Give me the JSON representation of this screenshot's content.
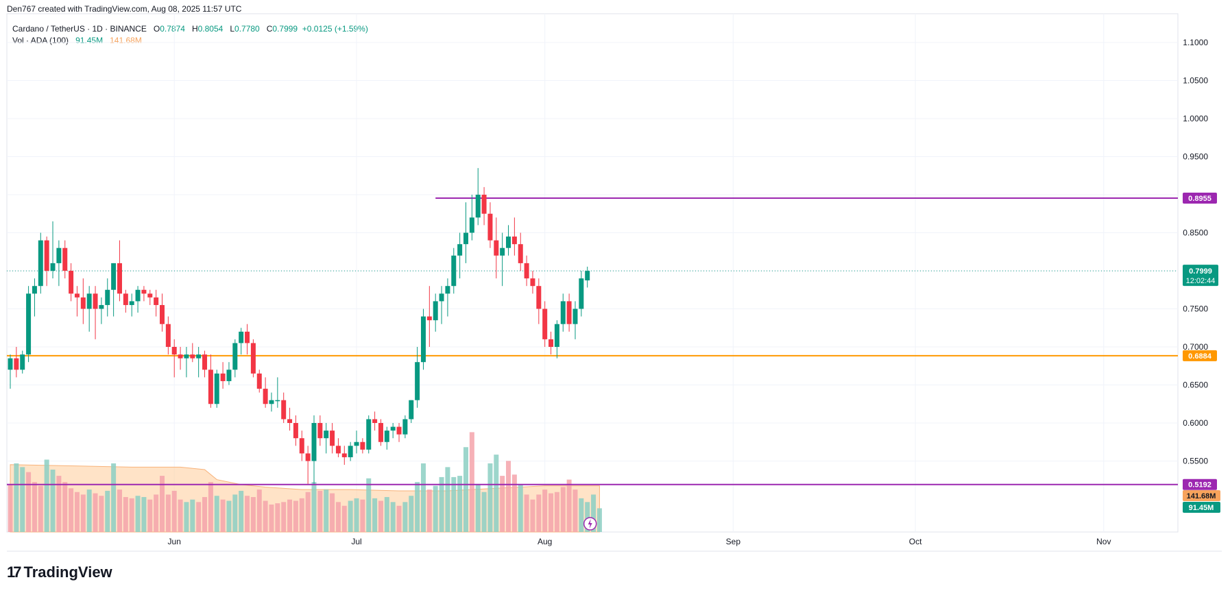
{
  "header": {
    "attribution": "Den767 created with TradingView.com, Aug 08, 2025 11:57 UTC"
  },
  "legend": {
    "symbol": "Cardano / TetherUS · 1D · BINANCE",
    "o_label": "O",
    "o_value": "0.7874",
    "h_label": "H",
    "h_value": "0.8054",
    "l_label": "L",
    "l_value": "0.7780",
    "c_label": "C",
    "c_value": "0.7999",
    "change": "+0.0125 (+1.59%)",
    "vol_label": "Vol · ADA (100)",
    "vol_value": "91.45M",
    "vol_ma_value": "141.68M"
  },
  "brand": {
    "name": "TradingView"
  },
  "colors": {
    "up": "#089981",
    "down": "#f23645",
    "vol_up": "#8ccfc3",
    "vol_down": "#f5a3aa",
    "vol_ma": "#f7a35c",
    "level_purple": "#9c27b0",
    "level_orange": "#ff9800",
    "grid": "#f0f3fa"
  },
  "chart_data": {
    "type": "candlestick",
    "title": "Cardano / TetherUS · 1D · BINANCE",
    "y_range": [
      0.48,
      1.13
    ],
    "y_ticks": [
      "1.1000",
      "1.0500",
      "1.0000",
      "0.9500",
      "0.8500",
      "0.7500",
      "0.7000",
      "0.6500",
      "0.6000",
      "0.5500"
    ],
    "y_tick_values": [
      1.1,
      1.05,
      1.0,
      0.95,
      0.85,
      0.75,
      0.7,
      0.65,
      0.6,
      0.55
    ],
    "x_labels": [
      "Jun",
      "Jul",
      "Aug",
      "Sep",
      "Oct",
      "Nov"
    ],
    "x_label_days": [
      27,
      57,
      88,
      119,
      149,
      180
    ],
    "levels": [
      {
        "name": "resistance",
        "value": 0.8955,
        "label": "0.8955",
        "color": "#9c27b0",
        "start_day": 70
      },
      {
        "name": "support",
        "value": 0.6884,
        "label": "0.6884",
        "color": "#ff9800",
        "start_day": 0
      },
      {
        "name": "low-level",
        "value": 0.5192,
        "label": "0.5192",
        "color": "#9c27b0",
        "start_day": 0
      }
    ],
    "last_price": {
      "label": "0.7999",
      "countdown": "12:02:44",
      "value": 0.7999
    },
    "vol_axis_labels": [
      {
        "label": "141.68M",
        "color": "#f7a35c"
      },
      {
        "label": "91.45M",
        "color": "#089981"
      }
    ],
    "candles": [
      [
        0.67,
        0.69,
        0.645,
        0.685
      ],
      [
        0.685,
        0.7,
        0.66,
        0.67
      ],
      [
        0.67,
        0.695,
        0.665,
        0.69
      ],
      [
        0.69,
        0.78,
        0.68,
        0.77
      ],
      [
        0.77,
        0.79,
        0.74,
        0.78
      ],
      [
        0.78,
        0.85,
        0.77,
        0.84
      ],
      [
        0.84,
        0.845,
        0.78,
        0.8
      ],
      [
        0.8,
        0.865,
        0.79,
        0.81
      ],
      [
        0.81,
        0.84,
        0.78,
        0.83
      ],
      [
        0.83,
        0.84,
        0.79,
        0.8
      ],
      [
        0.8,
        0.81,
        0.76,
        0.77
      ],
      [
        0.77,
        0.78,
        0.74,
        0.765
      ],
      [
        0.765,
        0.79,
        0.73,
        0.75
      ],
      [
        0.75,
        0.78,
        0.72,
        0.77
      ],
      [
        0.77,
        0.78,
        0.71,
        0.75
      ],
      [
        0.75,
        0.765,
        0.73,
        0.755
      ],
      [
        0.755,
        0.79,
        0.74,
        0.775
      ],
      [
        0.775,
        0.81,
        0.74,
        0.81
      ],
      [
        0.81,
        0.84,
        0.76,
        0.77
      ],
      [
        0.77,
        0.775,
        0.745,
        0.755
      ],
      [
        0.755,
        0.77,
        0.74,
        0.76
      ],
      [
        0.76,
        0.78,
        0.745,
        0.775
      ],
      [
        0.775,
        0.78,
        0.76,
        0.77
      ],
      [
        0.77,
        0.775,
        0.755,
        0.765
      ],
      [
        0.765,
        0.775,
        0.74,
        0.755
      ],
      [
        0.755,
        0.77,
        0.72,
        0.73
      ],
      [
        0.73,
        0.74,
        0.69,
        0.7
      ],
      [
        0.7,
        0.71,
        0.66,
        0.69
      ],
      [
        0.69,
        0.7,
        0.67,
        0.685
      ],
      [
        0.685,
        0.7,
        0.66,
        0.69
      ],
      [
        0.69,
        0.705,
        0.68,
        0.685
      ],
      [
        0.685,
        0.7,
        0.66,
        0.69
      ],
      [
        0.69,
        0.695,
        0.66,
        0.67
      ],
      [
        0.67,
        0.69,
        0.62,
        0.625
      ],
      [
        0.625,
        0.67,
        0.62,
        0.665
      ],
      [
        0.665,
        0.68,
        0.645,
        0.655
      ],
      [
        0.655,
        0.68,
        0.65,
        0.67
      ],
      [
        0.67,
        0.71,
        0.66,
        0.705
      ],
      [
        0.705,
        0.725,
        0.69,
        0.72
      ],
      [
        0.72,
        0.73,
        0.69,
        0.705
      ],
      [
        0.705,
        0.71,
        0.66,
        0.665
      ],
      [
        0.665,
        0.67,
        0.64,
        0.645
      ],
      [
        0.645,
        0.66,
        0.62,
        0.625
      ],
      [
        0.625,
        0.64,
        0.615,
        0.63
      ],
      [
        0.63,
        0.66,
        0.62,
        0.63
      ],
      [
        0.63,
        0.64,
        0.6,
        0.605
      ],
      [
        0.605,
        0.62,
        0.59,
        0.6
      ],
      [
        0.6,
        0.61,
        0.57,
        0.58
      ],
      [
        0.58,
        0.59,
        0.55,
        0.56
      ],
      [
        0.56,
        0.57,
        0.52,
        0.55
      ],
      [
        0.55,
        0.61,
        0.52,
        0.6
      ],
      [
        0.6,
        0.61,
        0.57,
        0.58
      ],
      [
        0.58,
        0.6,
        0.56,
        0.59
      ],
      [
        0.59,
        0.6,
        0.56,
        0.57
      ],
      [
        0.57,
        0.58,
        0.555,
        0.56
      ],
      [
        0.56,
        0.57,
        0.545,
        0.555
      ],
      [
        0.555,
        0.575,
        0.55,
        0.57
      ],
      [
        0.57,
        0.59,
        0.56,
        0.575
      ],
      [
        0.575,
        0.58,
        0.56,
        0.565
      ],
      [
        0.565,
        0.61,
        0.56,
        0.605
      ],
      [
        0.605,
        0.615,
        0.59,
        0.6
      ],
      [
        0.6,
        0.605,
        0.57,
        0.575
      ],
      [
        0.575,
        0.595,
        0.565,
        0.59
      ],
      [
        0.59,
        0.6,
        0.58,
        0.595
      ],
      [
        0.595,
        0.6,
        0.575,
        0.585
      ],
      [
        0.585,
        0.61,
        0.58,
        0.605
      ],
      [
        0.605,
        0.63,
        0.6,
        0.63
      ],
      [
        0.63,
        0.7,
        0.62,
        0.68
      ],
      [
        0.68,
        0.75,
        0.67,
        0.74
      ],
      [
        0.74,
        0.78,
        0.7,
        0.735
      ],
      [
        0.735,
        0.77,
        0.72,
        0.76
      ],
      [
        0.76,
        0.78,
        0.73,
        0.77
      ],
      [
        0.77,
        0.79,
        0.74,
        0.78
      ],
      [
        0.78,
        0.83,
        0.77,
        0.82
      ],
      [
        0.82,
        0.85,
        0.79,
        0.835
      ],
      [
        0.835,
        0.89,
        0.81,
        0.85
      ],
      [
        0.85,
        0.9,
        0.84,
        0.87
      ],
      [
        0.87,
        0.935,
        0.86,
        0.9
      ],
      [
        0.9,
        0.91,
        0.86,
        0.875
      ],
      [
        0.875,
        0.89,
        0.83,
        0.84
      ],
      [
        0.84,
        0.87,
        0.79,
        0.82
      ],
      [
        0.82,
        0.85,
        0.78,
        0.83
      ],
      [
        0.83,
        0.86,
        0.82,
        0.845
      ],
      [
        0.845,
        0.87,
        0.82,
        0.835
      ],
      [
        0.835,
        0.85,
        0.8,
        0.81
      ],
      [
        0.81,
        0.82,
        0.78,
        0.79
      ],
      [
        0.79,
        0.8,
        0.77,
        0.78
      ],
      [
        0.78,
        0.79,
        0.73,
        0.75
      ],
      [
        0.75,
        0.76,
        0.7,
        0.71
      ],
      [
        0.71,
        0.72,
        0.69,
        0.7
      ],
      [
        0.7,
        0.735,
        0.685,
        0.73
      ],
      [
        0.73,
        0.77,
        0.72,
        0.76
      ],
      [
        0.76,
        0.77,
        0.72,
        0.73
      ],
      [
        0.73,
        0.76,
        0.71,
        0.75
      ],
      [
        0.75,
        0.8,
        0.74,
        0.79
      ],
      [
        0.7874,
        0.8054,
        0.778,
        0.7999
      ]
    ],
    "volume": [
      [
        38,
        "d"
      ],
      [
        55,
        "u"
      ],
      [
        52,
        "u"
      ],
      [
        48,
        "d"
      ],
      [
        40,
        "d"
      ],
      [
        37,
        "d"
      ],
      [
        58,
        "u"
      ],
      [
        50,
        "u"
      ],
      [
        45,
        "d"
      ],
      [
        40,
        "d"
      ],
      [
        35,
        "d"
      ],
      [
        32,
        "d"
      ],
      [
        30,
        "d"
      ],
      [
        34,
        "u"
      ],
      [
        31,
        "d"
      ],
      [
        29,
        "d"
      ],
      [
        33,
        "u"
      ],
      [
        55,
        "u"
      ],
      [
        34,
        "d"
      ],
      [
        28,
        "d"
      ],
      [
        27,
        "d"
      ],
      [
        29,
        "u"
      ],
      [
        28,
        "u"
      ],
      [
        26,
        "d"
      ],
      [
        30,
        "d"
      ],
      [
        45,
        "d"
      ],
      [
        30,
        "d"
      ],
      [
        33,
        "d"
      ],
      [
        26,
        "d"
      ],
      [
        24,
        "u"
      ],
      [
        26,
        "u"
      ],
      [
        24,
        "d"
      ],
      [
        28,
        "d"
      ],
      [
        40,
        "d"
      ],
      [
        29,
        "u"
      ],
      [
        26,
        "d"
      ],
      [
        25,
        "u"
      ],
      [
        30,
        "u"
      ],
      [
        33,
        "u"
      ],
      [
        29,
        "d"
      ],
      [
        28,
        "d"
      ],
      [
        34,
        "d"
      ],
      [
        25,
        "d"
      ],
      [
        22,
        "d"
      ],
      [
        23,
        "d"
      ],
      [
        24,
        "d"
      ],
      [
        26,
        "d"
      ],
      [
        25,
        "d"
      ],
      [
        27,
        "d"
      ],
      [
        32,
        "d"
      ],
      [
        40,
        "u"
      ],
      [
        33,
        "d"
      ],
      [
        34,
        "u"
      ],
      [
        31,
        "d"
      ],
      [
        24,
        "d"
      ],
      [
        21,
        "d"
      ],
      [
        25,
        "u"
      ],
      [
        27,
        "u"
      ],
      [
        26,
        "d"
      ],
      [
        43,
        "u"
      ],
      [
        27,
        "u"
      ],
      [
        25,
        "d"
      ],
      [
        28,
        "u"
      ],
      [
        24,
        "u"
      ],
      [
        21,
        "d"
      ],
      [
        24,
        "u"
      ],
      [
        29,
        "u"
      ],
      [
        40,
        "u"
      ],
      [
        55,
        "u"
      ],
      [
        34,
        "d"
      ],
      [
        37,
        "u"
      ],
      [
        44,
        "u"
      ],
      [
        52,
        "u"
      ],
      [
        44,
        "u"
      ],
      [
        45,
        "u"
      ],
      [
        68,
        "u"
      ],
      [
        80,
        "d"
      ],
      [
        38,
        "u"
      ],
      [
        32,
        "u"
      ],
      [
        55,
        "u"
      ],
      [
        62,
        "u"
      ],
      [
        45,
        "d"
      ],
      [
        57,
        "d"
      ],
      [
        46,
        "d"
      ],
      [
        38,
        "u"
      ],
      [
        30,
        "d"
      ],
      [
        26,
        "d"
      ],
      [
        30,
        "d"
      ],
      [
        34,
        "d"
      ],
      [
        31,
        "d"
      ],
      [
        32,
        "d"
      ],
      [
        36,
        "d"
      ],
      [
        42,
        "d"
      ],
      [
        34,
        "d"
      ],
      [
        27,
        "u"
      ],
      [
        24,
        "u"
      ],
      [
        30,
        "u"
      ],
      [
        19,
        "u"
      ]
    ],
    "vol_ma": [
      [
        0,
        54
      ],
      [
        10,
        53
      ],
      [
        20,
        52
      ],
      [
        28,
        52
      ],
      [
        32,
        50
      ],
      [
        34,
        42
      ],
      [
        38,
        38
      ],
      [
        42,
        36
      ],
      [
        48,
        34
      ],
      [
        56,
        34
      ],
      [
        64,
        33
      ],
      [
        72,
        33
      ],
      [
        80,
        35
      ],
      [
        88,
        37
      ],
      [
        97,
        37
      ]
    ]
  }
}
